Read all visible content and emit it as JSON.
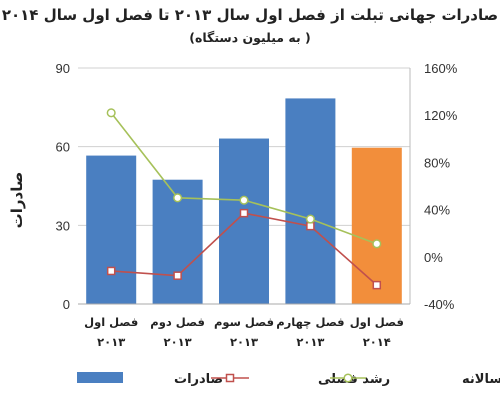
{
  "chart_data": {
    "type": "bar",
    "title": "صادرات جهانی تبلت از فصل اول سال ۲۰۱۳ تا فصل اول سال ۲۰۱۴",
    "subtitle": "( به میلیون دستگاه)",
    "ylabel": "صادرات",
    "categories": [
      [
        "فصل اول",
        "۲۰۱۳"
      ],
      [
        "فصل دوم",
        "۲۰۱۳"
      ],
      [
        "فصل سوم",
        "۲۰۱۳"
      ],
      [
        "فصل چهارم",
        "۲۰۱۳"
      ],
      [
        "فصل اول",
        "۲۰۱۴"
      ]
    ],
    "ylim": [
      0,
      90
    ],
    "y_ticks": [
      "0",
      "30",
      "60",
      "90"
    ],
    "y2lim": [
      -0.4,
      1.6
    ],
    "y2_ticks": [
      "-40%",
      "0%",
      "40%",
      "80%",
      "120%",
      "160%"
    ],
    "grid": "horizontal",
    "legend_position": "bottom",
    "series": [
      {
        "name": "صادرات",
        "kind": "bar",
        "axis": "left",
        "values": [
          56.6,
          47.4,
          63.1,
          78.4,
          59.6
        ],
        "colors": [
          "#4a7fc1",
          "#4a7fc1",
          "#4a7fc1",
          "#4a7fc1",
          "#f28e3b"
        ]
      },
      {
        "name": "رشد فصلی",
        "kind": "line",
        "axis": "right",
        "color": "#c0504d",
        "values": [
          -0.12,
          -0.16,
          0.37,
          0.26,
          -0.24
        ]
      },
      {
        "name": "رشد سالانه",
        "kind": "line",
        "axis": "right",
        "color": "#a6c15a",
        "values": [
          1.22,
          0.5,
          0.48,
          0.32,
          0.11
        ]
      }
    ]
  }
}
